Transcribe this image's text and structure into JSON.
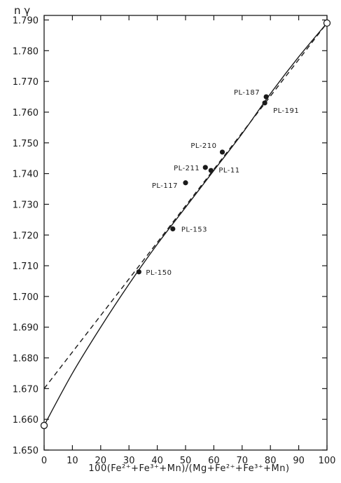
{
  "chart_data": {
    "type": "scatter",
    "title": "",
    "ylabel": "n γ",
    "xlabel": "100(Fe²⁺+Fe³⁺+Mn)/(Mg+Fe²⁺+Fe³⁺+Mn)",
    "xlim": [
      0,
      100
    ],
    "ylim": [
      1.65,
      1.795
    ],
    "x_ticks": [
      0,
      10,
      20,
      30,
      40,
      50,
      60,
      70,
      80,
      90,
      100
    ],
    "x_tick_labels": [
      "0",
      "10",
      "20",
      "30",
      "40",
      "50",
      "60",
      "70",
      "80",
      "90",
      "100"
    ],
    "y_ticks": [
      1.65,
      1.66,
      1.67,
      1.68,
      1.69,
      1.7,
      1.71,
      1.72,
      1.73,
      1.74,
      1.75,
      1.76,
      1.77,
      1.78,
      1.79
    ],
    "y_tick_labels": [
      "1.650",
      "1.660",
      "1.670",
      "1.680",
      "1.690",
      "1.700",
      "1.710",
      "1.720",
      "1.730",
      "1.740",
      "1.750",
      "1.760",
      "1.770",
      "1.780",
      "1.790"
    ],
    "points": [
      {
        "label": "PL-150",
        "x": 33.5,
        "y": 1.708
      },
      {
        "label": "PL-153",
        "x": 45.5,
        "y": 1.722
      },
      {
        "label": "PL-117",
        "x": 50,
        "y": 1.737
      },
      {
        "label": "PL-211",
        "x": 57,
        "y": 1.742
      },
      {
        "label": "PL-11",
        "x": 59,
        "y": 1.741
      },
      {
        "label": "PL-210",
        "x": 63,
        "y": 1.747
      },
      {
        "label": "PL-187",
        "x": 78.5,
        "y": 1.765
      },
      {
        "label": "PL-191",
        "x": 78,
        "y": 1.763
      }
    ],
    "endpoints": [
      {
        "x": 0,
        "y": 1.658
      },
      {
        "x": 100,
        "y": 1.789
      }
    ],
    "curves": [
      {
        "style": "solid",
        "x": [
          0,
          10,
          20,
          30,
          40,
          50,
          60,
          70,
          80,
          90,
          100
        ],
        "y": [
          1.658,
          1.675,
          1.69,
          1.704,
          1.717,
          1.729,
          1.741,
          1.753,
          1.766,
          1.778,
          1.789
        ]
      },
      {
        "style": "dashed",
        "x": [
          0,
          100
        ],
        "y": [
          1.67,
          1.789
        ]
      }
    ],
    "grid": false,
    "legend": "none"
  }
}
